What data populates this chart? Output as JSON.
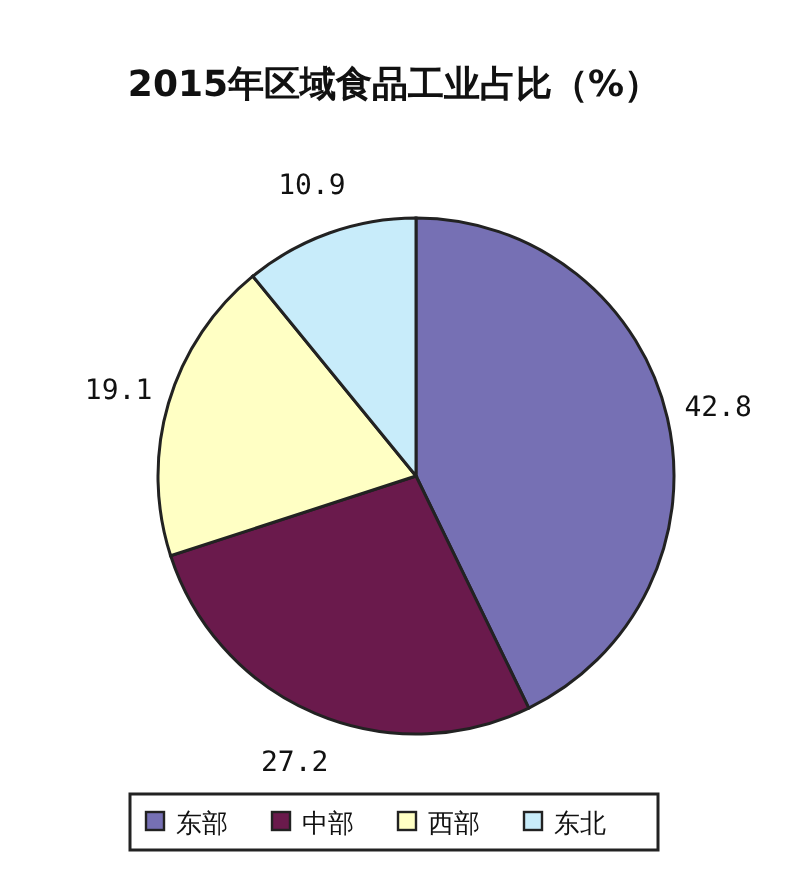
{
  "chart_data": {
    "type": "pie",
    "title": "2015年区域食品工业占比（%）",
    "categories": [
      "东部",
      "中部",
      "西部",
      "东北"
    ],
    "values": [
      42.8,
      27.2,
      19.1,
      10.9
    ],
    "colors": [
      "#7670b4",
      "#6a1a4c",
      "#ffffc4",
      "#c8ecfa"
    ],
    "data_labels": true,
    "legend": "bottom"
  }
}
